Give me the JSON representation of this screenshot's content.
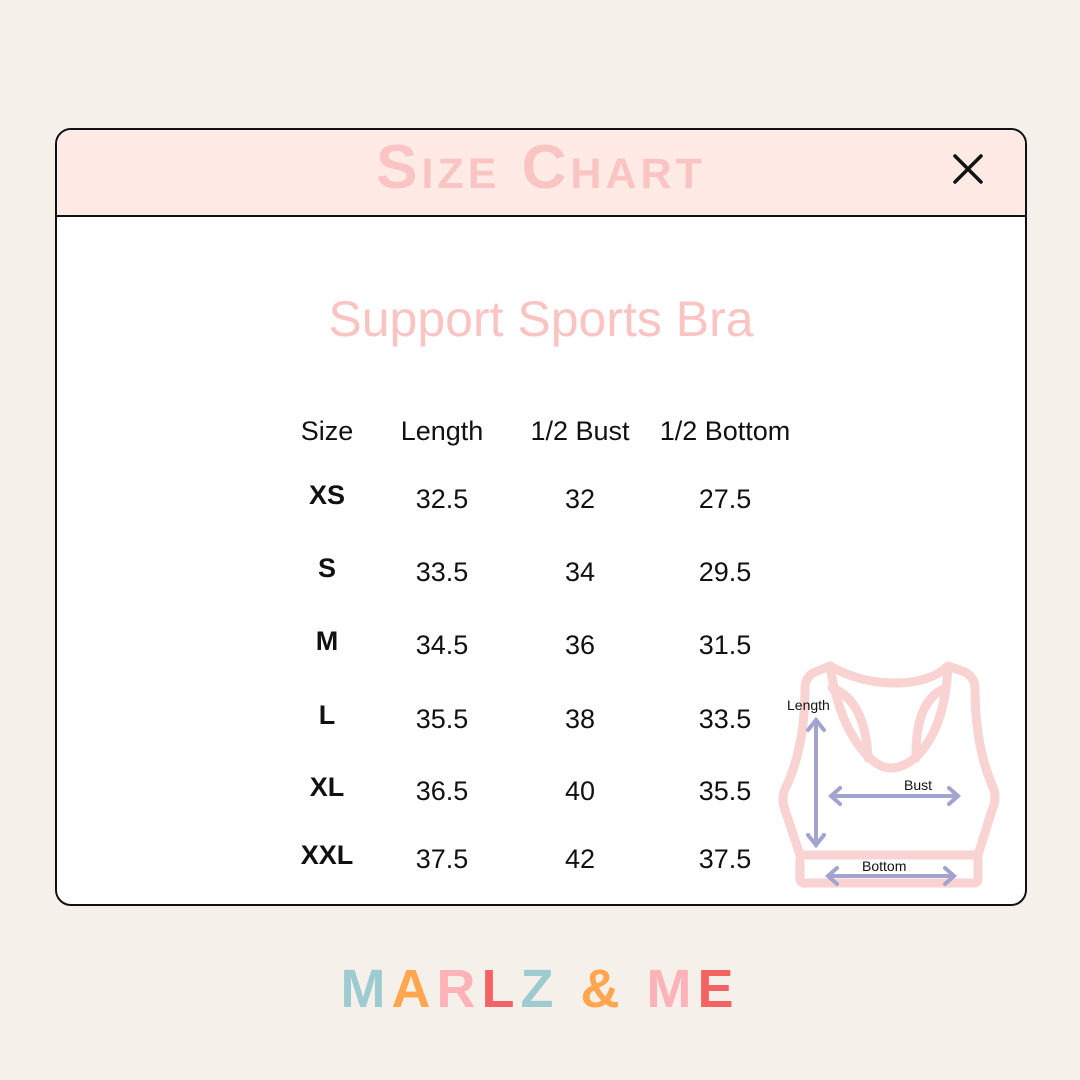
{
  "header": {
    "title": "Size Chart",
    "close_icon": "close-icon"
  },
  "subtitle": "Support Sports Bra",
  "table": {
    "columns": [
      "Size",
      "Length",
      "1/2 Bust",
      "1/2 Bottom"
    ],
    "rows": [
      [
        "XS",
        "32.5",
        "32",
        "27.5"
      ],
      [
        "S",
        "33.5",
        "34",
        "29.5"
      ],
      [
        "M",
        "34.5",
        "36",
        "31.5"
      ],
      [
        "L",
        "35.5",
        "38",
        "33.5"
      ],
      [
        "XL",
        "36.5",
        "40",
        "35.5"
      ],
      [
        "XXL",
        "37.5",
        "42",
        "37.5"
      ]
    ]
  },
  "diagram": {
    "length_label": "Length",
    "bust_label": "Bust",
    "bottom_label": "Bottom",
    "outline_color": "#f9d2d2",
    "arrow_color": "#a3a3cf"
  },
  "logo": {
    "letters": [
      {
        "c": "M",
        "color": "#9ecbd0"
      },
      {
        "c": "A",
        "color": "#ffa64f"
      },
      {
        "c": "R",
        "color": "#ffb3b8"
      },
      {
        "c": "L",
        "color": "#f46363"
      },
      {
        "c": "Z",
        "color": "#9ecbd0"
      },
      {
        "c": " ",
        "color": "#000"
      },
      {
        "c": "&",
        "color": "#ffa64f"
      },
      {
        "c": " ",
        "color": "#000"
      },
      {
        "c": "M",
        "color": "#ffb3b8"
      },
      {
        "c": "E",
        "color": "#f46363"
      }
    ]
  }
}
